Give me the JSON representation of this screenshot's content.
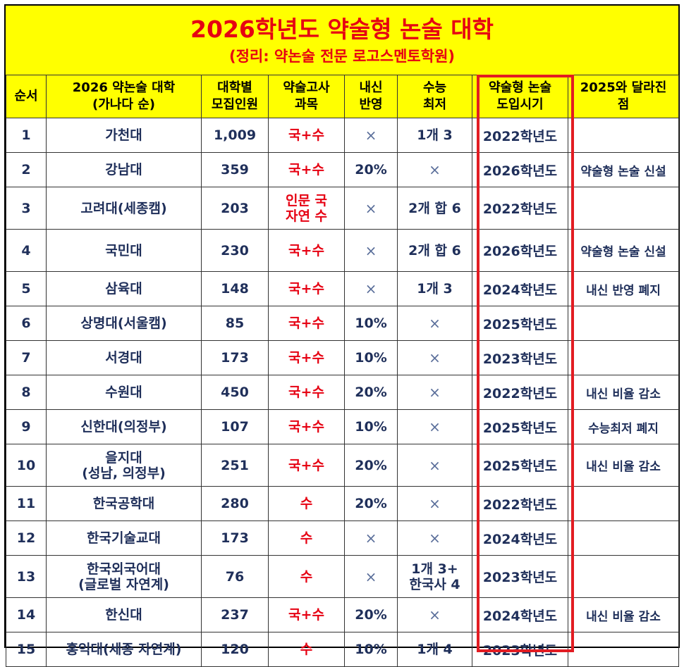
{
  "title": "2026학년도 약술형 논술 대학",
  "subtitle": "(정리: 약논술 전문 로고스멘토학원)",
  "headers": [
    "순서",
    "2026 약논술 대학\n(가나다 순)",
    "대학별\n모집인원",
    "약술고사\n과목",
    "내신\n반영",
    "수능\n최저",
    "약술형 논술\n도입시기",
    "2025와 달라진\n점"
  ],
  "rows": [
    {
      "no": "1",
      "univ": "가천대",
      "count": "1,009",
      "subject": "국+수",
      "gpa": "×",
      "csat": "1개 3",
      "year": "2022학년도",
      "change": ""
    },
    {
      "no": "2",
      "univ": "강남대",
      "count": "359",
      "subject": "국+수",
      "gpa": "20%",
      "csat": "×",
      "year": "2026학년도",
      "change": "약술형 논술 신설"
    },
    {
      "no": "3",
      "univ": "고려대(세종캠)",
      "count": "203",
      "subject": "인문 국\n자연 수",
      "gpa": "×",
      "csat": "2개 합 6",
      "year": "2022학년도",
      "change": ""
    },
    {
      "no": "4",
      "univ": "국민대",
      "count": "230",
      "subject": "국+수",
      "gpa": "×",
      "csat": "2개 합 6",
      "year": "2026학년도",
      "change": "약술형 논술 신설"
    },
    {
      "no": "5",
      "univ": "삼육대",
      "count": "148",
      "subject": "국+수",
      "gpa": "×",
      "csat": "1개 3",
      "year": "2024학년도",
      "change": "내신 반영 폐지"
    },
    {
      "no": "6",
      "univ": "상명대(서울캠)",
      "count": "85",
      "subject": "국+수",
      "gpa": "10%",
      "csat": "×",
      "year": "2025학년도",
      "change": ""
    },
    {
      "no": "7",
      "univ": "서경대",
      "count": "173",
      "subject": "국+수",
      "gpa": "10%",
      "csat": "×",
      "year": "2023학년도",
      "change": ""
    },
    {
      "no": "8",
      "univ": "수원대",
      "count": "450",
      "subject": "국+수",
      "gpa": "20%",
      "csat": "×",
      "year": "2022학년도",
      "change": "내신 비율 감소"
    },
    {
      "no": "9",
      "univ": "신한대(의정부)",
      "count": "107",
      "subject": "국+수",
      "gpa": "10%",
      "csat": "×",
      "year": "2025학년도",
      "change": "수능최저 폐지"
    },
    {
      "no": "10",
      "univ": "을지대\n(성남, 의정부)",
      "count": "251",
      "subject": "국+수",
      "gpa": "20%",
      "csat": "×",
      "year": "2025학년도",
      "change": "내신 비율 감소"
    },
    {
      "no": "11",
      "univ": "한국공학대",
      "count": "280",
      "subject": "수",
      "gpa": "20%",
      "csat": "×",
      "year": "2022학년도",
      "change": ""
    },
    {
      "no": "12",
      "univ": "한국기술교대",
      "count": "173",
      "subject": "수",
      "gpa": "×",
      "csat": "×",
      "year": "2024학년도",
      "change": ""
    },
    {
      "no": "13",
      "univ": "한국외국어대\n(글로벌 자연계)",
      "count": "76",
      "subject": "수",
      "gpa": "×",
      "csat": "1개 3+\n한국사 4",
      "year": "2023학년도",
      "change": ""
    },
    {
      "no": "14",
      "univ": "한신대",
      "count": "237",
      "subject": "국+수",
      "gpa": "20%",
      "csat": "×",
      "year": "2024학년도",
      "change": "내신 비율 감소"
    },
    {
      "no": "15",
      "univ": "홍익대(세종 자연계)",
      "count": "120",
      "subject": "수",
      "gpa": "10%",
      "csat": "1개 4",
      "year": "2023학년도",
      "change": ""
    }
  ],
  "colors": {
    "title": "#e60012",
    "header_bg": "#ffff00",
    "cell_text": "#1f2f5a",
    "highlight_border": "#e21c22"
  }
}
